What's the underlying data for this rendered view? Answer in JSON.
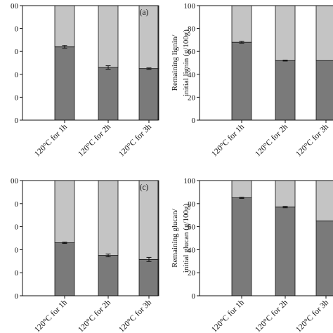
{
  "colors": {
    "dark": "#7a7a7a",
    "light": "#c4c4c4",
    "axis": "#111111"
  },
  "chart_data": [
    {
      "type": "bar",
      "stacked": true,
      "panel_label": "(a)",
      "categories": [
        "120°C for 1h",
        "120°C for 2h",
        "120°C for 3h"
      ],
      "series": [
        {
          "values": [
            64,
            46,
            45
          ],
          "errors": [
            1.2,
            1.5,
            0.6
          ]
        },
        {
          "values": [
            36,
            54,
            55
          ]
        }
      ],
      "ylim": [
        0,
        100
      ],
      "yticks": [
        "0",
        "20",
        "40",
        "60",
        "80",
        "100"
      ],
      "ytick_labels_visible": [
        "0",
        "0",
        "0",
        "0",
        "0",
        "00"
      ],
      "ylabel_lines": []
    },
    {
      "type": "bar",
      "stacked": true,
      "panel_label": "",
      "categories": [
        "120°C for 1h",
        "120°C for 2h",
        "120°C for 3h"
      ],
      "series": [
        {
          "values": [
            68,
            52,
            52
          ],
          "errors": [
            0.8,
            0.4,
            0
          ]
        },
        {
          "values": [
            32,
            48,
            48
          ]
        }
      ],
      "ylim": [
        0,
        100
      ],
      "yticks": [
        "0",
        "20",
        "40",
        "60",
        "80",
        "100"
      ],
      "ytick_labels_visible": [
        "0",
        "20",
        "40",
        "60",
        "80",
        "100"
      ],
      "ylabel_lines": [
        "Remaining lignin/",
        "initial lignin (g/100g)"
      ]
    },
    {
      "type": "bar",
      "stacked": true,
      "panel_label": "(c)",
      "categories": [
        "120°C for 1h",
        "120°C for 2h",
        "120°C for 3h"
      ],
      "series": [
        {
          "values": [
            46,
            35,
            31.5
          ],
          "errors": [
            0.6,
            1.2,
            1.8
          ]
        },
        {
          "values": [
            54,
            65,
            68.5
          ]
        }
      ],
      "ylim": [
        0,
        100
      ],
      "yticks": [
        "0",
        "20",
        "40",
        "60",
        "80",
        "100"
      ],
      "ytick_labels_visible": [
        "0",
        "0",
        "0",
        "0",
        "0",
        "00"
      ],
      "ylabel_lines": []
    },
    {
      "type": "bar",
      "stacked": true,
      "panel_label": "",
      "categories": [
        "120°C for 1h",
        "120°C for 2h",
        "120°C for 3h"
      ],
      "series": [
        {
          "values": [
            85,
            77,
            65
          ],
          "errors": [
            0.5,
            0.6,
            0
          ]
        },
        {
          "values": [
            15,
            23,
            35
          ]
        }
      ],
      "ylim": [
        0,
        100
      ],
      "yticks": [
        "0",
        "20",
        "40",
        "60",
        "80",
        "100"
      ],
      "ytick_labels_visible": [
        "0",
        "20",
        "40",
        "60",
        "80",
        "100"
      ],
      "ylabel_lines": [
        "Remaining glucan/",
        "initial glucan (g/100g)"
      ]
    }
  ]
}
